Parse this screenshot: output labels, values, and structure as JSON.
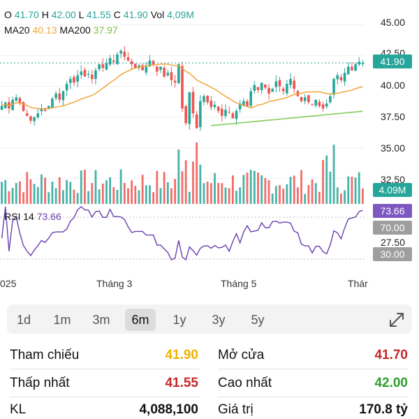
{
  "ohlc": {
    "o_label": "O",
    "o_value": "41.70",
    "h_label": "H",
    "h_value": "42.00",
    "l_label": "L",
    "l_value": "41.55",
    "c_label": "C",
    "c_value": "41.90",
    "vol_label": "Vol",
    "vol_value": "4,09M"
  },
  "ma": {
    "ma20_label": "MA20",
    "ma20_value": "40.13",
    "ma200_label": "MA200",
    "ma200_value": "37.97"
  },
  "rsi": {
    "label": "RSI 14",
    "value": "73.66"
  },
  "y_axis_ticks": [
    "45.00",
    "42.50",
    "40.00",
    "37.50",
    "35.00",
    "32.50"
  ],
  "rsi_axis_ticks": [
    "27.50"
  ],
  "badges": {
    "price": "41.90",
    "volume": "4.09M",
    "rsi": "73.66",
    "rsi_upper": "70.00",
    "rsi_lower": "30.00"
  },
  "x_axis_labels": [
    "025",
    "Tháng 3",
    "Tháng 5",
    "Thár"
  ],
  "timeframe_tabs": [
    "1d",
    "1m",
    "3m",
    "6m",
    "1y",
    "3y",
    "5y"
  ],
  "active_tab": "6m",
  "stats": {
    "reference_label": "Tham chiếu",
    "reference_value": "41.90",
    "open_label": "Mở cửa",
    "open_value": "41.70",
    "low_label": "Thấp nhất",
    "low_value": "41.55",
    "high_label": "Cao nhất",
    "high_value": "42.00",
    "volume_label": "KL",
    "volume_value": "4,088,100",
    "value_label": "Giá trị",
    "value_value": "170.8 tỷ"
  },
  "colors": {
    "up": "#26a69a",
    "down": "#ef5350",
    "ma20": "#f0a63a",
    "ma200": "#8fd16a",
    "rsi": "#6a3fb0",
    "reference": "#f0b400",
    "low": "#c62828",
    "open": "#c62828",
    "high": "#2e9e2e"
  },
  "chart_data": {
    "type": "candlestick",
    "ylim": [
      31,
      46
    ],
    "price_ticks": [
      45,
      42.5,
      40,
      37.5,
      35,
      32.5
    ],
    "last_close": 41.9,
    "ma20_last": 40.13,
    "ma200_last": 37.97,
    "close": [
      38.4,
      38.7,
      38.2,
      38.9,
      39.1,
      38.6,
      38.0,
      37.6,
      37.2,
      37.5,
      37.8,
      38.2,
      38.0,
      38.4,
      39.0,
      39.4,
      38.9,
      39.6,
      40.2,
      40.6,
      40.3,
      40.9,
      41.2,
      40.8,
      41.0,
      40.6,
      41.3,
      41.8,
      41.5,
      41.9,
      42.3,
      42.0,
      42.6,
      42.9,
      42.4,
      42.1,
      41.8,
      41.5,
      41.7,
      41.3,
      41.6,
      42.1,
      41.8,
      41.2,
      41.6,
      40.8,
      41.1,
      40.5,
      40.3,
      41.8,
      38.2,
      37.0,
      39.5,
      37.8,
      36.6,
      38.8,
      39.2,
      38.7,
      38.3,
      38.5,
      38.0,
      37.6,
      38.1,
      37.9,
      37.4,
      38.0,
      38.6,
      38.8,
      38.4,
      39.6,
      40.1,
      39.7,
      40.3,
      39.9,
      39.4,
      39.8,
      40.4,
      40.0,
      39.6,
      40.2,
      40.6,
      39.8,
      39.2,
      38.8,
      39.1,
      38.7,
      38.5,
      38.9,
      38.4,
      38.2,
      38.6,
      39.2,
      40.6,
      40.9,
      40.5,
      41.1,
      41.6,
      41.3,
      41.8,
      42.0,
      41.9
    ]
  }
}
